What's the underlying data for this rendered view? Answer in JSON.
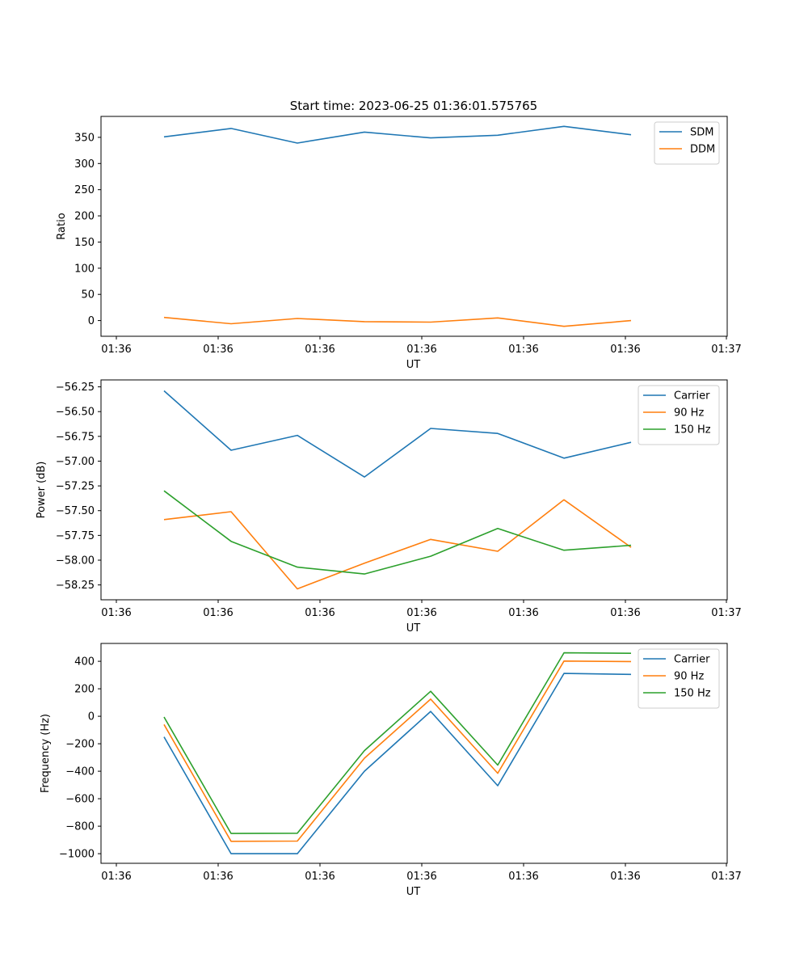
{
  "figure": {
    "title": "Start time: 2023-06-25 01:36:01.575765"
  },
  "chart_data": [
    {
      "type": "line",
      "xlabel": "UT",
      "ylabel": "Ratio",
      "x_tick_labels": [
        "01:36",
        "01:36",
        "01:36",
        "01:36",
        "01:36",
        "01:36",
        "01:37"
      ],
      "yticks": [
        0,
        50,
        100,
        150,
        200,
        250,
        300,
        350
      ],
      "ylim": [
        -30,
        390
      ],
      "grid": false,
      "legend": "top-right",
      "series": [
        {
          "name": "SDM",
          "color": "#1f77b4",
          "values": [
            351,
            367,
            339,
            360,
            349,
            354,
            371,
            355
          ]
        },
        {
          "name": "DDM",
          "color": "#ff7f0e",
          "values": [
            6,
            -6,
            4,
            -2,
            -3,
            5,
            -11,
            0
          ]
        }
      ]
    },
    {
      "type": "line",
      "xlabel": "UT",
      "ylabel": "Power (dB)",
      "x_tick_labels": [
        "01:36",
        "01:36",
        "01:36",
        "01:36",
        "01:36",
        "01:36",
        "01:37"
      ],
      "yticks": [
        -56.25,
        -56.5,
        -56.75,
        -57.0,
        -57.25,
        -57.5,
        -57.75,
        -58.0,
        -58.25
      ],
      "ytick_labels": [
        "−56.25",
        "−56.50",
        "−56.75",
        "−57.00",
        "−57.25",
        "−57.50",
        "−57.75",
        "−58.00",
        "−58.25"
      ],
      "ylim": [
        -58.4,
        -56.18
      ],
      "grid": false,
      "legend": "top-right",
      "series": [
        {
          "name": "Carrier",
          "color": "#1f77b4",
          "values": [
            -56.29,
            -56.89,
            -56.74,
            -57.16,
            -56.67,
            -56.72,
            -56.97,
            -56.81
          ]
        },
        {
          "name": "90 Hz",
          "color": "#ff7f0e",
          "values": [
            -57.59,
            -57.51,
            -58.29,
            -58.03,
            -57.79,
            -57.91,
            -57.39,
            -57.87
          ]
        },
        {
          "name": "150 Hz",
          "color": "#2ca02c",
          "values": [
            -57.3,
            -57.81,
            -58.07,
            -58.14,
            -57.96,
            -57.68,
            -57.9,
            -57.85
          ]
        }
      ]
    },
    {
      "type": "line",
      "xlabel": "UT",
      "ylabel": "Frequency (Hz)",
      "x_tick_labels": [
        "01:36",
        "01:36",
        "01:36",
        "01:36",
        "01:36",
        "01:36",
        "01:37"
      ],
      "yticks": [
        400,
        200,
        0,
        -200,
        -400,
        -600,
        -800,
        -1000
      ],
      "ytick_labels": [
        "400",
        "200",
        "0",
        "−200",
        "−400",
        "−600",
        "−800",
        "−1000"
      ],
      "ylim": [
        -1070,
        530
      ],
      "grid": false,
      "legend": "top-right",
      "series": [
        {
          "name": "Carrier",
          "color": "#1f77b4",
          "values": [
            -150,
            -1000,
            -1000,
            -400,
            35,
            -505,
            312,
            305
          ]
        },
        {
          "name": "90 Hz",
          "color": "#ff7f0e",
          "values": [
            -60,
            -910,
            -908,
            -305,
            125,
            -415,
            402,
            398
          ]
        },
        {
          "name": "150 Hz",
          "color": "#2ca02c",
          "values": [
            -5,
            -853,
            -851,
            -250,
            182,
            -355,
            462,
            458
          ]
        }
      ]
    }
  ]
}
